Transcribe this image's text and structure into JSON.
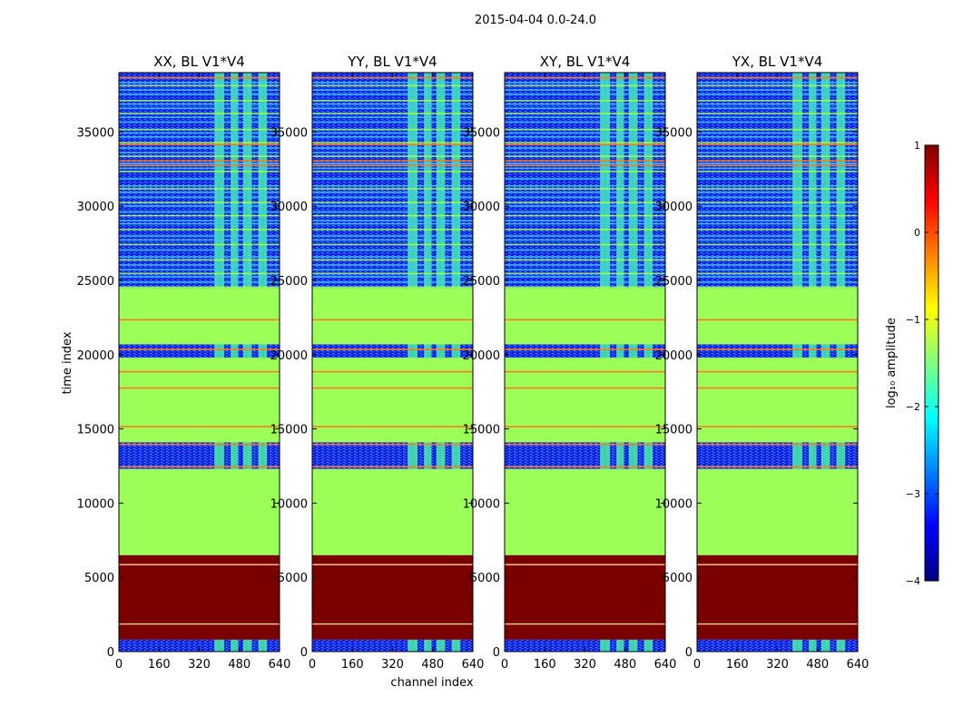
{
  "figure": {
    "suptitle": "2015-04-04 0.0-24.0"
  },
  "chart_data": {
    "type": "heatmap",
    "title": "2015-04-04 0.0-24.0",
    "xlabel": "channel index",
    "ylabel": "time index",
    "xlim": [
      0,
      640
    ],
    "ylim": [
      0,
      39000
    ],
    "xticks": [
      0,
      160,
      320,
      480,
      640
    ],
    "yticks": [
      0,
      5000,
      10000,
      15000,
      20000,
      25000,
      30000,
      35000
    ],
    "panels": [
      {
        "title": "XX, BL V1*V4"
      },
      {
        "title": "YY, BL V1*V4"
      },
      {
        "title": "XY, BL V1*V4"
      },
      {
        "title": "YX, BL V1*V4"
      }
    ],
    "colorbar": {
      "label": "log₁₀ amplitude",
      "range": [
        -4,
        1
      ],
      "ticks": [
        1,
        0,
        -1,
        -2,
        -3,
        -4
      ],
      "colormap": "jet"
    },
    "colors": {
      "saturated": "#7a0000",
      "flagged": "#9cff57",
      "low_noise": "#1a2cff",
      "rfi_band": "#4dff9f",
      "strong_line": "#ff7a1a"
    },
    "time_blocks": [
      {
        "t0": 0,
        "t1": 800,
        "level": "noise"
      },
      {
        "t0": 800,
        "t1": 6500,
        "level": "saturated"
      },
      {
        "t0": 6500,
        "t1": 12300,
        "level": "flagged"
      },
      {
        "t0": 12300,
        "t1": 14100,
        "level": "noise"
      },
      {
        "t0": 14100,
        "t1": 19800,
        "level": "flagged"
      },
      {
        "t0": 19800,
        "t1": 20700,
        "level": "noise"
      },
      {
        "t0": 20700,
        "t1": 24500,
        "level": "flagged"
      },
      {
        "t0": 24500,
        "t1": 39000,
        "level": "noise"
      }
    ],
    "rfi_channels": [
      [
        380,
        420
      ],
      [
        445,
        475
      ],
      [
        495,
        530
      ],
      [
        555,
        590
      ]
    ]
  }
}
